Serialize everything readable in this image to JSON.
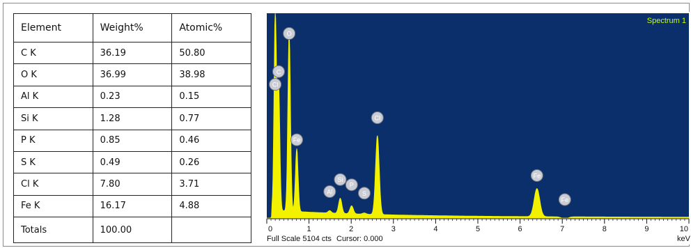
{
  "table": {
    "headers": [
      "Element",
      "Weight%",
      "Atomic%"
    ],
    "rows": [
      [
        "C K",
        "36.19",
        "50.80"
      ],
      [
        "O K",
        "36.99",
        "38.98"
      ],
      [
        "Al K",
        "0.23",
        "0.15"
      ],
      [
        "Si K",
        "1.28",
        "0.77"
      ],
      [
        "P K",
        "0.85",
        "0.46"
      ],
      [
        "S K",
        "0.49",
        "0.26"
      ],
      [
        "Cl K",
        "7.80",
        "3.71"
      ],
      [
        "Fe K",
        "16.17",
        "4.88"
      ],
      [
        "Totals",
        "100.00",
        ""
      ]
    ]
  },
  "spectrum": {
    "footer_scale": "Full Scale 5104 cts",
    "footer_cursor": "Cursor: 0.000",
    "unit": "keV"
  },
  "colors": {
    "plot_background": "#0b2f6b",
    "spectrum_fill": "#f2f200",
    "label_text": "#c8ff00",
    "peak_marker": "#c9ccd4"
  },
  "chart_data": {
    "type": "area",
    "title": "Spectrum 1",
    "xlabel": "keV",
    "ylabel": "",
    "xlim": [
      0,
      10
    ],
    "ylim": [
      0,
      5104
    ],
    "grid": false,
    "x_ticks": [
      0,
      1,
      2,
      3,
      4,
      5,
      6,
      7,
      8,
      9,
      10
    ],
    "background_counts": 180,
    "peaks": [
      {
        "element": "C",
        "energy": 0.28,
        "counts": 3300
      },
      {
        "element": "Cl",
        "energy": 0.2,
        "counts": 5104
      },
      {
        "element": "O",
        "energy": 0.53,
        "counts": 4650
      },
      {
        "element": "Fe",
        "energy": 0.71,
        "counts": 1750
      },
      {
        "element": "Al",
        "energy": 1.49,
        "counts": 240
      },
      {
        "element": "Si",
        "energy": 1.74,
        "counts": 560
      },
      {
        "element": "P",
        "energy": 2.01,
        "counts": 380
      },
      {
        "element": "S",
        "energy": 2.31,
        "counts": 210
      },
      {
        "element": "Cl",
        "energy": 2.62,
        "counts": 2150
      },
      {
        "element": "Fe",
        "energy": 6.4,
        "counts": 880
      },
      {
        "element": "Fe",
        "energy": 7.06,
        "counts": 120
      }
    ],
    "peak_labels": [
      {
        "text": "O",
        "energy": 0.53,
        "counts": 4600
      },
      {
        "text": "C",
        "energy": 0.28,
        "counts": 3650
      },
      {
        "text": "Cl",
        "energy": 0.2,
        "counts": 3330
      },
      {
        "text": "Fe",
        "energy": 0.71,
        "counts": 1950
      },
      {
        "text": "Al",
        "energy": 1.49,
        "counts": 660
      },
      {
        "text": "Si",
        "energy": 1.74,
        "counts": 960
      },
      {
        "text": "P",
        "energy": 2.01,
        "counts": 830
      },
      {
        "text": "S",
        "energy": 2.31,
        "counts": 620
      },
      {
        "text": "Cl",
        "energy": 2.62,
        "counts": 2500
      },
      {
        "text": "Fe",
        "energy": 6.4,
        "counts": 1060
      },
      {
        "text": "Fe",
        "energy": 7.06,
        "counts": 460
      }
    ]
  }
}
